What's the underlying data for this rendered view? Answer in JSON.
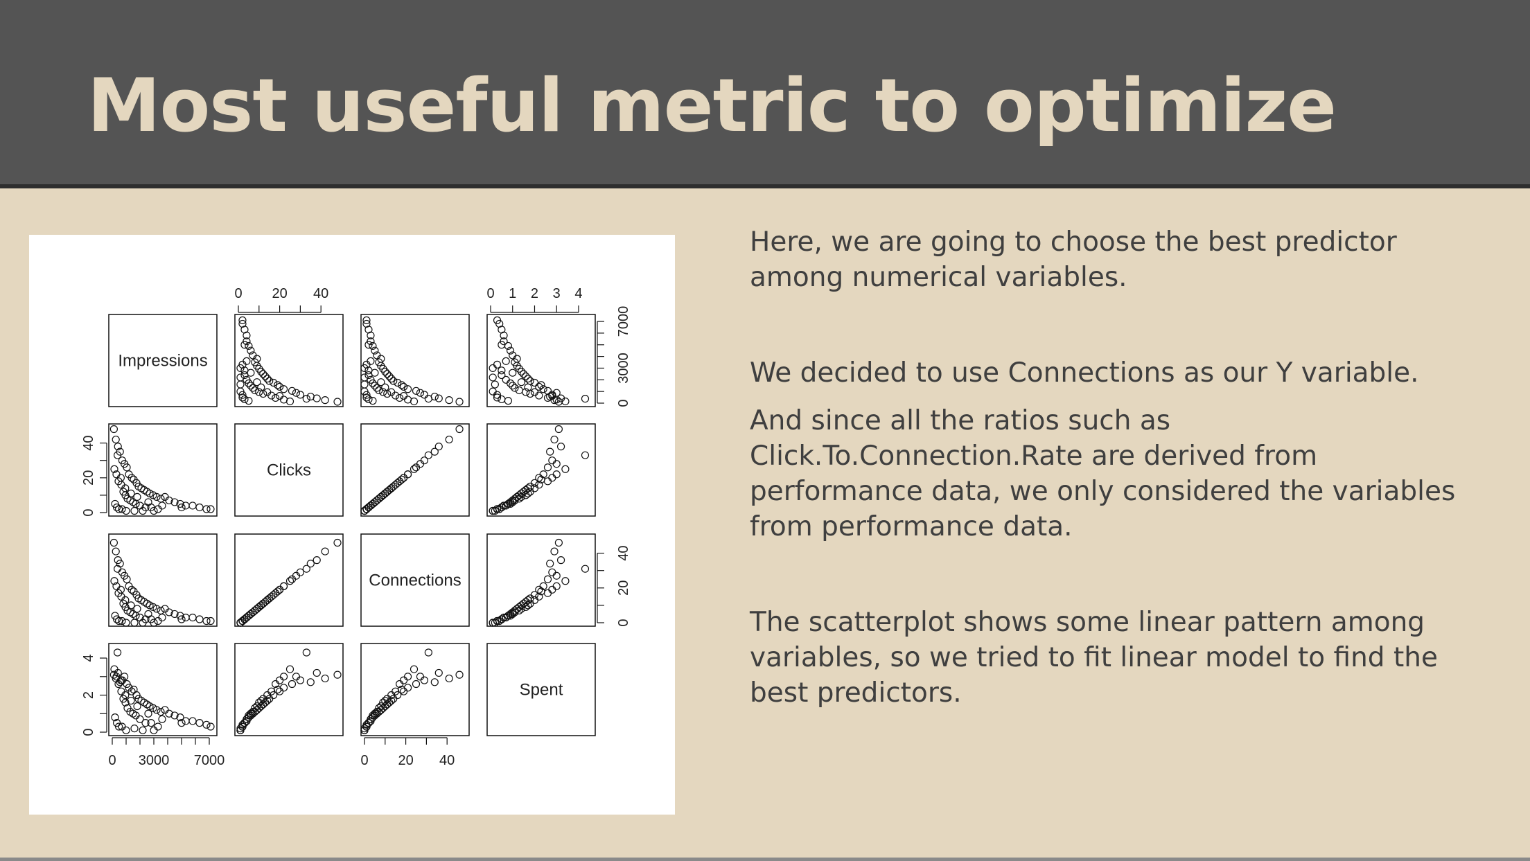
{
  "slide": {
    "title": "Most useful metric to optimize",
    "paragraphs": [
      "Here, we are going to choose the best predictor among numerical variables.",
      "We decided to use Connections as our Y variable.",
      "And since all the ratios such as Click.To.Connection.Rate are derived from performance data, we only considered the variables from performance data.",
      "The scatterplot shows some linear pattern among variables, so we tried to fit linear model to find the best predictors."
    ],
    "colors": {
      "header": "#545454",
      "background": "#e4d7bf",
      "title": "#e4d7bf",
      "text": "#3f3f3f"
    }
  },
  "chart_data": {
    "type": "scatter",
    "subtype": "scatterplot-matrix",
    "variables": [
      "Impressions",
      "Clicks",
      "Connections",
      "Spent"
    ],
    "axes": {
      "Impressions": {
        "range": [
          0,
          7300
        ],
        "ticks": [
          0,
          1000,
          2000,
          3000,
          4000,
          5000,
          6000,
          7000
        ],
        "tick_labels": [
          "0",
          "3000",
          "7000"
        ],
        "tick_label_values": [
          0,
          3000,
          7000
        ]
      },
      "Clicks": {
        "range": [
          0,
          49
        ],
        "ticks": [
          0,
          10,
          20,
          30,
          40
        ],
        "tick_labels": [
          "0",
          "20",
          "40"
        ],
        "tick_label_values": [
          0,
          20,
          40
        ]
      },
      "Connections": {
        "range": [
          0,
          49
        ],
        "ticks": [
          0,
          10,
          20,
          30,
          40
        ],
        "tick_labels": [
          "0",
          "20",
          "40"
        ],
        "tick_label_values": [
          0,
          20,
          40
        ]
      },
      "Spent": {
        "range": [
          0,
          4.6
        ],
        "ticks": [
          0,
          1,
          2,
          3,
          4
        ],
        "tick_labels": [
          "0",
          "1",
          "2",
          "3",
          "4"
        ],
        "tick_label_values": [
          0,
          1,
          2,
          3,
          4
        ],
        "left_tick_labels": [
          "0",
          "2",
          "4"
        ],
        "left_tick_label_values": [
          0,
          2,
          4
        ]
      }
    },
    "points": {
      "Impressions": [
        120,
        260,
        410,
        560,
        720,
        880,
        1050,
        1200,
        1400,
        1550,
        1750,
        1900,
        2100,
        2300,
        2500,
        2700,
        2950,
        3200,
        3500,
        3800,
        4100,
        4500,
        4900,
        5300,
        5800,
        6300,
        6800,
        7100,
        150,
        300,
        450,
        650,
        800,
        950,
        1100,
        1300,
        1500,
        1700,
        2000,
        2400,
        2800,
        3300,
        380,
        620,
        940,
        1350,
        1800,
        2600,
        3600,
        5000,
        200,
        330,
        480,
        700,
        1000,
        1600,
        2200,
        3000
      ],
      "Clicks": [
        48,
        42,
        38,
        35,
        30,
        28,
        26,
        22,
        20,
        19,
        17,
        15,
        14,
        13,
        12,
        11,
        10,
        9,
        8,
        9,
        7,
        6,
        5,
        4,
        4,
        3,
        2,
        2,
        25,
        22,
        18,
        16,
        12,
        10,
        8,
        7,
        6,
        5,
        4,
        3,
        3,
        2,
        33,
        20,
        14,
        11,
        9,
        6,
        4,
        3,
        5,
        3,
        2,
        2,
        1,
        1,
        1,
        1
      ],
      "Connections": [
        46,
        41,
        36,
        34,
        29,
        27,
        25,
        21,
        19,
        18,
        16,
        14,
        13,
        12,
        11,
        10,
        9,
        8,
        7,
        8,
        6,
        5,
        4,
        3,
        3,
        2,
        1,
        1,
        24,
        21,
        17,
        15,
        11,
        9,
        7,
        6,
        5,
        4,
        3,
        2,
        2,
        1,
        31,
        19,
        13,
        10,
        8,
        5,
        3,
        2,
        4,
        2,
        1,
        1,
        0,
        0,
        0,
        0
      ],
      "Spent": [
        3.1,
        2.9,
        3.2,
        2.7,
        2.8,
        3.0,
        2.6,
        2.4,
        2.2,
        2.3,
        2.0,
        1.8,
        1.7,
        1.6,
        1.5,
        1.4,
        1.3,
        1.2,
        1.1,
        1.2,
        1.0,
        0.9,
        0.8,
        0.6,
        0.6,
        0.5,
        0.4,
        0.3,
        3.4,
        3.0,
        2.6,
        2.2,
        1.8,
        1.6,
        1.3,
        1.1,
        1.0,
        0.9,
        0.7,
        0.5,
        0.5,
        0.3,
        4.3,
        2.8,
        2.0,
        1.7,
        1.4,
        1.0,
        0.7,
        0.5,
        0.8,
        0.5,
        0.3,
        0.3,
        0.1,
        0.2,
        0.1,
        0.1
      ]
    },
    "marker": "open-circle",
    "grid": false,
    "legend": "none"
  }
}
